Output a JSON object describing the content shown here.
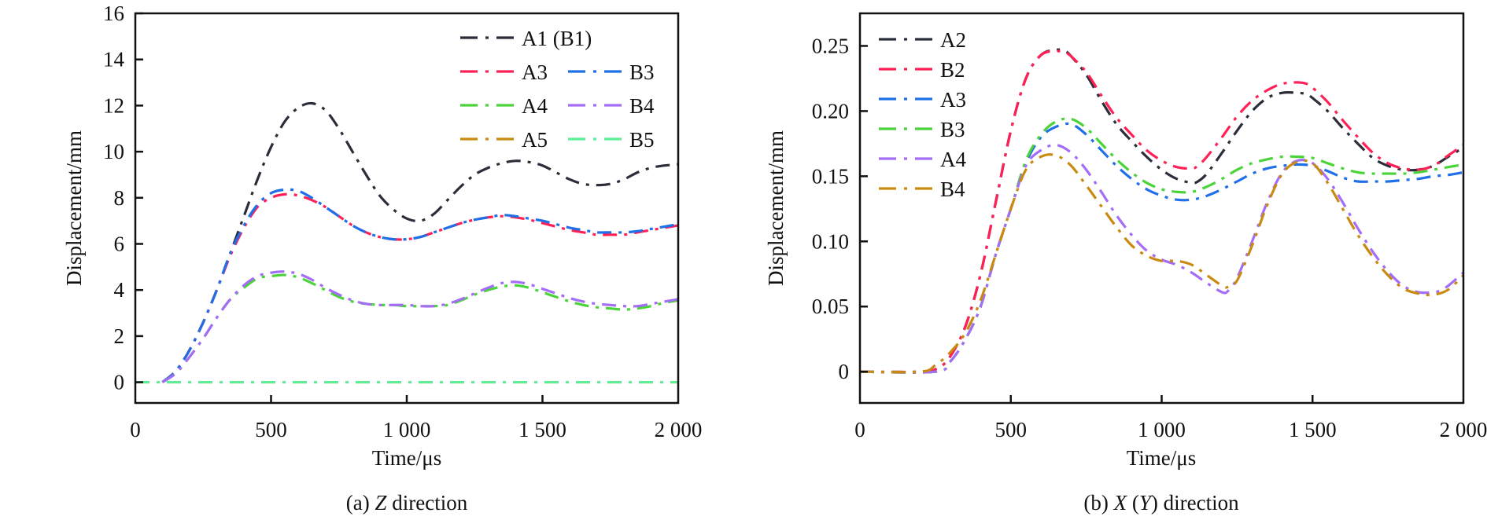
{
  "chart_data": [
    {
      "type": "line",
      "caption": {
        "prefix": "(a) ",
        "italic": "Z",
        "suffix": " direction"
      },
      "xlabel": "Time/μs",
      "ylabel": "Displacement/mm",
      "xlim": [
        0,
        2000
      ],
      "ylim": [
        -0.9,
        16
      ],
      "xticks": [
        0,
        500,
        1000,
        1500,
        2000
      ],
      "xtick_labels": [
        "0",
        "500",
        "1 000",
        "1 500",
        "2 000"
      ],
      "yticks": [
        0,
        2,
        4,
        6,
        8,
        10,
        12,
        14,
        16
      ],
      "ytick_labels": [
        "0",
        "2",
        "4",
        "6",
        "8",
        "10",
        "12",
        "14",
        "16"
      ],
      "grid": false,
      "legend_placement": "top-right",
      "legend_columns": [
        [
          "A1 (B1)"
        ],
        [
          "A3",
          "B3"
        ],
        [
          "A4",
          "B4"
        ],
        [
          "A5",
          "B5"
        ]
      ],
      "series": [
        {
          "name": "A1 (B1)",
          "color": "#2b2d3a",
          "x": [
            100,
            150,
            200,
            250,
            300,
            350,
            400,
            450,
            500,
            550,
            600,
            650,
            700,
            750,
            800,
            850,
            900,
            950,
            1000,
            1050,
            1100,
            1150,
            1200,
            1250,
            1300,
            1350,
            1400,
            1450,
            1500,
            1550,
            1600,
            1650,
            1700,
            1750,
            1800,
            1850,
            1900,
            1950,
            2000
          ],
          "y": [
            0,
            0.5,
            1.4,
            2.6,
            4.0,
            5.6,
            7.2,
            8.8,
            10.2,
            11.3,
            11.9,
            12.1,
            11.8,
            11.0,
            10.0,
            9.0,
            8.1,
            7.5,
            7.1,
            7.0,
            7.3,
            7.9,
            8.5,
            9.0,
            9.3,
            9.5,
            9.6,
            9.55,
            9.4,
            9.1,
            8.8,
            8.6,
            8.55,
            8.6,
            8.8,
            9.1,
            9.3,
            9.4,
            9.45
          ]
        },
        {
          "name": "A3",
          "color": "#ff2055",
          "x": [
            100,
            150,
            200,
            250,
            300,
            350,
            400,
            450,
            500,
            550,
            600,
            650,
            700,
            750,
            800,
            850,
            900,
            950,
            1000,
            1050,
            1100,
            1150,
            1200,
            1250,
            1300,
            1350,
            1400,
            1450,
            1500,
            1550,
            1600,
            1650,
            1700,
            1750,
            1800,
            1850,
            1900,
            1950,
            2000
          ],
          "y": [
            0,
            0.5,
            1.4,
            2.6,
            4.0,
            5.5,
            6.7,
            7.6,
            8.0,
            8.15,
            8.1,
            7.9,
            7.6,
            7.2,
            6.8,
            6.5,
            6.3,
            6.2,
            6.2,
            6.3,
            6.5,
            6.7,
            6.9,
            7.05,
            7.15,
            7.2,
            7.15,
            7.05,
            6.9,
            6.75,
            6.6,
            6.5,
            6.4,
            6.4,
            6.4,
            6.5,
            6.6,
            6.7,
            6.8
          ]
        },
        {
          "name": "B3",
          "color": "#1f6fe8",
          "x": [
            100,
            150,
            200,
            250,
            300,
            350,
            400,
            450,
            500,
            550,
            600,
            650,
            700,
            750,
            800,
            850,
            900,
            950,
            1000,
            1050,
            1100,
            1150,
            1200,
            1250,
            1300,
            1350,
            1400,
            1450,
            1500,
            1550,
            1600,
            1650,
            1700,
            1750,
            1800,
            1850,
            1900,
            1950,
            2000
          ],
          "y": [
            0,
            0.5,
            1.4,
            2.6,
            4.0,
            5.6,
            6.8,
            7.7,
            8.2,
            8.35,
            8.3,
            8.0,
            7.6,
            7.2,
            6.8,
            6.5,
            6.3,
            6.2,
            6.2,
            6.3,
            6.5,
            6.7,
            6.9,
            7.05,
            7.15,
            7.25,
            7.2,
            7.1,
            7.0,
            6.85,
            6.7,
            6.6,
            6.5,
            6.5,
            6.5,
            6.55,
            6.65,
            6.75,
            6.85
          ]
        },
        {
          "name": "A4",
          "color": "#4bd43a",
          "x": [
            100,
            150,
            200,
            250,
            300,
            350,
            400,
            450,
            500,
            550,
            600,
            650,
            700,
            750,
            800,
            850,
            900,
            950,
            1000,
            1050,
            1100,
            1150,
            1200,
            1250,
            1300,
            1350,
            1400,
            1450,
            1500,
            1550,
            1600,
            1650,
            1700,
            1750,
            1800,
            1850,
            1900,
            1950,
            2000
          ],
          "y": [
            0,
            0.4,
            1.1,
            1.9,
            2.8,
            3.6,
            4.1,
            4.5,
            4.6,
            4.65,
            4.55,
            4.3,
            4.0,
            3.7,
            3.5,
            3.4,
            3.35,
            3.35,
            3.3,
            3.3,
            3.3,
            3.35,
            3.55,
            3.8,
            4.0,
            4.15,
            4.2,
            4.1,
            3.9,
            3.7,
            3.5,
            3.35,
            3.25,
            3.2,
            3.15,
            3.2,
            3.3,
            3.45,
            3.55
          ]
        },
        {
          "name": "B4",
          "color": "#a46df5",
          "x": [
            100,
            150,
            200,
            250,
            300,
            350,
            400,
            450,
            500,
            550,
            600,
            650,
            700,
            750,
            800,
            850,
            900,
            950,
            1000,
            1050,
            1100,
            1150,
            1200,
            1250,
            1300,
            1350,
            1400,
            1450,
            1500,
            1550,
            1600,
            1650,
            1700,
            1750,
            1800,
            1850,
            1900,
            1950,
            2000
          ],
          "y": [
            0,
            0.4,
            1.1,
            1.9,
            2.8,
            3.6,
            4.2,
            4.6,
            4.75,
            4.8,
            4.7,
            4.45,
            4.1,
            3.8,
            3.55,
            3.4,
            3.35,
            3.35,
            3.35,
            3.3,
            3.3,
            3.4,
            3.6,
            3.85,
            4.1,
            4.3,
            4.35,
            4.25,
            4.05,
            3.85,
            3.65,
            3.5,
            3.4,
            3.35,
            3.3,
            3.3,
            3.4,
            3.5,
            3.6
          ]
        },
        {
          "name": "A5",
          "color": "#c98a12",
          "x": [
            0,
            2000
          ],
          "y": [
            0,
            0
          ]
        },
        {
          "name": "B5",
          "color": "#5cef98",
          "x": [
            0,
            2000
          ],
          "y": [
            0,
            0
          ]
        }
      ]
    },
    {
      "type": "line",
      "caption": {
        "prefix": "(b) ",
        "italic": "X",
        "middle": " (",
        "italic2": "Y",
        "suffix": ") direction"
      },
      "xlabel": "Time/μs",
      "ylabel": "Displacement/mm",
      "xlim": [
        0,
        2000
      ],
      "ylim": [
        -0.024,
        0.275
      ],
      "xticks": [
        0,
        500,
        1000,
        1500,
        2000
      ],
      "xtick_labels": [
        "0",
        "500",
        "1 000",
        "1 500",
        "2 000"
      ],
      "yticks": [
        0,
        0.05,
        0.1,
        0.15,
        0.2,
        0.25
      ],
      "ytick_labels": [
        "0",
        "0.05",
        "0.10",
        "0.15",
        "0.20",
        "0.25"
      ],
      "grid": false,
      "legend_placement": "top-left",
      "series": [
        {
          "name": "A2",
          "color": "#2b2d3a",
          "x": [
            0,
            200,
            260,
            300,
            350,
            400,
            450,
            500,
            550,
            600,
            650,
            680,
            700,
            750,
            800,
            850,
            900,
            950,
            1000,
            1050,
            1100,
            1120,
            1150,
            1200,
            1250,
            1300,
            1350,
            1400,
            1450,
            1480,
            1500,
            1550,
            1600,
            1650,
            1700,
            1750,
            1800,
            1850,
            1900,
            1950,
            2000
          ],
          "y": [
            0,
            0,
            0.003,
            0.012,
            0.035,
            0.075,
            0.13,
            0.185,
            0.225,
            0.243,
            0.247,
            0.246,
            0.242,
            0.228,
            0.208,
            0.19,
            0.177,
            0.165,
            0.155,
            0.148,
            0.145,
            0.146,
            0.152,
            0.168,
            0.185,
            0.2,
            0.21,
            0.214,
            0.214,
            0.213,
            0.21,
            0.2,
            0.187,
            0.175,
            0.164,
            0.158,
            0.155,
            0.155,
            0.158,
            0.165,
            0.172
          ]
        },
        {
          "name": "B2",
          "color": "#ff2055",
          "x": [
            0,
            200,
            260,
            300,
            350,
            400,
            450,
            500,
            550,
            600,
            650,
            680,
            700,
            750,
            800,
            850,
            900,
            950,
            1000,
            1050,
            1100,
            1120,
            1150,
            1200,
            1250,
            1300,
            1350,
            1400,
            1450,
            1480,
            1500,
            1550,
            1600,
            1650,
            1700,
            1750,
            1800,
            1850,
            1900,
            1950,
            2000
          ],
          "y": [
            0,
            0,
            0.003,
            0.012,
            0.035,
            0.075,
            0.13,
            0.185,
            0.225,
            0.243,
            0.246,
            0.245,
            0.242,
            0.23,
            0.212,
            0.195,
            0.182,
            0.17,
            0.162,
            0.157,
            0.156,
            0.158,
            0.165,
            0.18,
            0.196,
            0.208,
            0.216,
            0.221,
            0.222,
            0.221,
            0.218,
            0.207,
            0.193,
            0.18,
            0.168,
            0.16,
            0.156,
            0.155,
            0.158,
            0.166,
            0.174
          ]
        },
        {
          "name": "A3",
          "color": "#1f6fe8",
          "x": [
            0,
            250,
            300,
            350,
            400,
            450,
            500,
            550,
            600,
            650,
            700,
            750,
            800,
            850,
            900,
            950,
            1000,
            1050,
            1100,
            1150,
            1200,
            1250,
            1300,
            1350,
            1400,
            1450,
            1500,
            1550,
            1600,
            1650,
            1700,
            1750,
            1800,
            1850,
            1900,
            1950,
            2000
          ],
          "y": [
            0,
            0,
            0.008,
            0.025,
            0.05,
            0.09,
            0.125,
            0.16,
            0.18,
            0.188,
            0.19,
            0.182,
            0.17,
            0.158,
            0.148,
            0.14,
            0.135,
            0.132,
            0.132,
            0.135,
            0.14,
            0.146,
            0.152,
            0.156,
            0.158,
            0.159,
            0.158,
            0.154,
            0.149,
            0.146,
            0.146,
            0.146,
            0.147,
            0.148,
            0.15,
            0.151,
            0.153
          ]
        },
        {
          "name": "B3",
          "color": "#4bd43a",
          "x": [
            0,
            250,
            300,
            350,
            400,
            450,
            500,
            550,
            600,
            650,
            700,
            750,
            800,
            850,
            900,
            950,
            1000,
            1050,
            1100,
            1150,
            1200,
            1250,
            1300,
            1350,
            1400,
            1450,
            1500,
            1550,
            1600,
            1650,
            1700,
            1750,
            1800,
            1850,
            1900,
            1950,
            2000
          ],
          "y": [
            0,
            0,
            0.008,
            0.025,
            0.05,
            0.09,
            0.125,
            0.162,
            0.182,
            0.192,
            0.194,
            0.187,
            0.175,
            0.163,
            0.153,
            0.145,
            0.14,
            0.138,
            0.138,
            0.142,
            0.148,
            0.155,
            0.16,
            0.163,
            0.165,
            0.165,
            0.164,
            0.16,
            0.156,
            0.153,
            0.152,
            0.152,
            0.152,
            0.153,
            0.155,
            0.157,
            0.159
          ]
        },
        {
          "name": "A4",
          "color": "#a46df5",
          "x": [
            0,
            250,
            300,
            350,
            400,
            450,
            500,
            550,
            600,
            650,
            700,
            750,
            800,
            850,
            900,
            950,
            1000,
            1050,
            1100,
            1150,
            1200,
            1220,
            1250,
            1300,
            1350,
            1400,
            1450,
            1500,
            1550,
            1600,
            1650,
            1700,
            1750,
            1800,
            1850,
            1900,
            1920,
            1950,
            2000
          ],
          "y": [
            0,
            0,
            0.008,
            0.025,
            0.05,
            0.09,
            0.125,
            0.158,
            0.17,
            0.174,
            0.168,
            0.155,
            0.138,
            0.12,
            0.105,
            0.093,
            0.086,
            0.082,
            0.076,
            0.068,
            0.061,
            0.062,
            0.072,
            0.1,
            0.13,
            0.153,
            0.162,
            0.16,
            0.148,
            0.13,
            0.11,
            0.092,
            0.077,
            0.066,
            0.061,
            0.061,
            0.062,
            0.066,
            0.076
          ]
        },
        {
          "name": "B4",
          "color": "#c98a12",
          "x": [
            0,
            200,
            250,
            300,
            350,
            400,
            450,
            500,
            550,
            600,
            650,
            700,
            750,
            800,
            850,
            900,
            950,
            1000,
            1050,
            1100,
            1150,
            1200,
            1220,
            1250,
            1300,
            1350,
            1400,
            1450,
            1500,
            1550,
            1600,
            1650,
            1700,
            1750,
            1800,
            1850,
            1900,
            1950,
            2000
          ],
          "y": [
            0,
            0,
            0.005,
            0.015,
            0.03,
            0.055,
            0.09,
            0.125,
            0.155,
            0.165,
            0.166,
            0.158,
            0.143,
            0.127,
            0.111,
            0.097,
            0.089,
            0.085,
            0.085,
            0.082,
            0.074,
            0.066,
            0.065,
            0.07,
            0.097,
            0.128,
            0.152,
            0.161,
            0.16,
            0.145,
            0.125,
            0.105,
            0.088,
            0.074,
            0.064,
            0.06,
            0.059,
            0.063,
            0.074
          ]
        }
      ]
    }
  ]
}
